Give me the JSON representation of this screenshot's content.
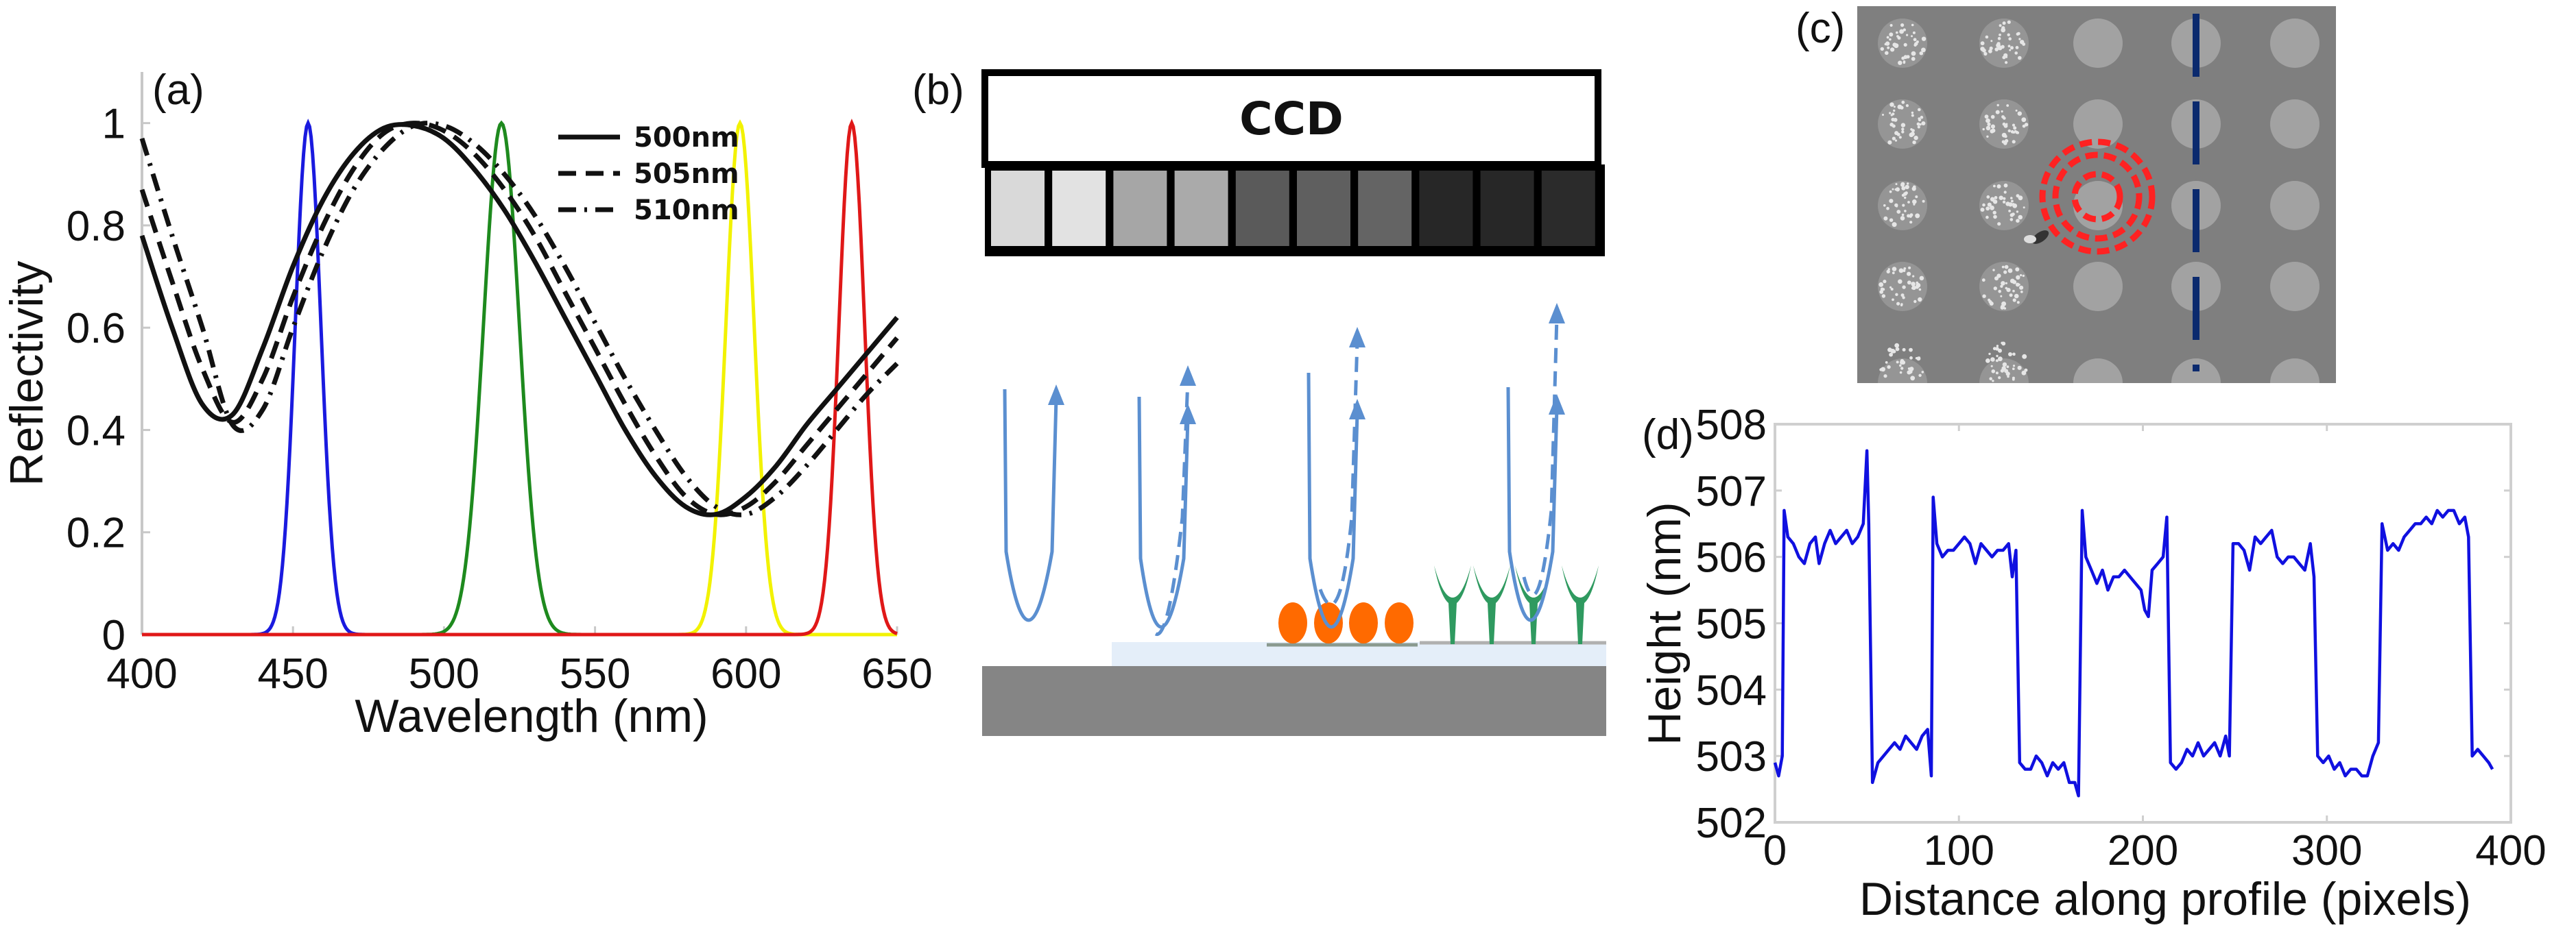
{
  "panels": {
    "a": "(a)",
    "b": "(b)",
    "c": "(c)",
    "d": "(d)"
  },
  "diagram_b": {
    "ccd_label": "CCD",
    "pixel_grays": [
      "#d9d9d9",
      "#e2e2e2",
      "#a6a6a6",
      "#aaaaaa",
      "#5a5a5a",
      "#5f5f5f",
      "#646464",
      "#272727",
      "#272727",
      "#2b2b2b"
    ],
    "colors": {
      "substrate": "#858585",
      "layer": "#e4eef9",
      "beam": "#5b8fd0",
      "particle": "#ff6a00",
      "antibody": "#2f9a60"
    }
  },
  "image_c": {
    "colors": {
      "background": "#7f7f7f",
      "spot": "#a2a2a2",
      "ring": "#ff2222",
      "profile_line": "#0b2a6e"
    },
    "grid": {
      "rows": 5,
      "cols": 5,
      "speckled_cols": 2
    }
  },
  "chart_data": [
    {
      "id": "a",
      "type": "line",
      "xlabel": "Wavelength (nm)",
      "ylabel": "Reflectivity",
      "xlim": [
        400,
        650
      ],
      "ylim": [
        0,
        1.1
      ],
      "xticks": [
        400,
        450,
        500,
        550,
        600,
        650
      ],
      "yticks": [
        0,
        0.2,
        0.4,
        0.6,
        0.8,
        1
      ],
      "ytick_labels": [
        "0",
        "0.2",
        "0.4",
        "0.6",
        "0.8",
        "1"
      ],
      "grid": false,
      "legend_position": "top-right",
      "x": [
        400,
        410,
        420,
        430,
        440,
        450,
        460,
        470,
        480,
        490,
        500,
        510,
        520,
        530,
        540,
        550,
        560,
        570,
        580,
        590,
        600,
        610,
        620,
        630,
        640,
        650
      ],
      "series": [
        {
          "name": "500nm",
          "style": "solid",
          "color": "#111111",
          "values": [
            0.78,
            0.6,
            0.45,
            0.43,
            0.56,
            0.72,
            0.85,
            0.94,
            0.99,
            0.995,
            0.97,
            0.91,
            0.83,
            0.73,
            0.62,
            0.51,
            0.4,
            0.31,
            0.25,
            0.235,
            0.27,
            0.33,
            0.41,
            0.48,
            0.55,
            0.62
          ]
        },
        {
          "name": "505nm",
          "style": "dashed",
          "color": "#111111",
          "values": [
            0.87,
            0.69,
            0.52,
            0.415,
            0.5,
            0.66,
            0.8,
            0.91,
            0.98,
            1.0,
            0.985,
            0.94,
            0.87,
            0.78,
            0.67,
            0.56,
            0.45,
            0.35,
            0.27,
            0.235,
            0.25,
            0.3,
            0.37,
            0.44,
            0.51,
            0.58
          ]
        },
        {
          "name": "510nm",
          "style": "dashdot",
          "color": "#111111",
          "values": [
            0.97,
            0.78,
            0.6,
            0.41,
            0.44,
            0.6,
            0.75,
            0.87,
            0.95,
            0.995,
            0.995,
            0.96,
            0.9,
            0.82,
            0.72,
            0.61,
            0.5,
            0.4,
            0.31,
            0.25,
            0.235,
            0.27,
            0.33,
            0.4,
            0.47,
            0.53
          ]
        }
      ],
      "filters": [
        {
          "color": "#1a1adf",
          "center": 455,
          "peak": 1,
          "fwhm": 10
        },
        {
          "color": "#1e8a1e",
          "center": 519,
          "peak": 1,
          "fwhm": 14
        },
        {
          "color": "#f2f200",
          "center": 598,
          "peak": 1,
          "fwhm": 11
        },
        {
          "color": "#e01818",
          "center": 635,
          "peak": 1,
          "fwhm": 10
        }
      ]
    },
    {
      "id": "d",
      "type": "line",
      "xlabel": "Distance along profile (pixels)",
      "ylabel": "Height (nm)",
      "xlim": [
        0,
        400
      ],
      "ylim": [
        502,
        508
      ],
      "xticks": [
        0,
        100,
        200,
        300,
        400
      ],
      "yticks": [
        502,
        503,
        504,
        505,
        506,
        507,
        508
      ],
      "grid": false,
      "series": [
        {
          "color": "#1010e0",
          "x": [
            0,
            2,
            4,
            5,
            7,
            10,
            13,
            16,
            19,
            22,
            24,
            27,
            30,
            33,
            36,
            39,
            42,
            45,
            48,
            50,
            51,
            53,
            56,
            59,
            62,
            65,
            68,
            71,
            74,
            77,
            80,
            83,
            85,
            86,
            88,
            91,
            94,
            97,
            100,
            103,
            106,
            109,
            112,
            115,
            118,
            121,
            124,
            127,
            129,
            131,
            133,
            136,
            139,
            142,
            145,
            148,
            151,
            154,
            157,
            160,
            163,
            165,
            167,
            169,
            172,
            175,
            178,
            181,
            184,
            187,
            190,
            193,
            196,
            199,
            201,
            203,
            205,
            208,
            211,
            213,
            215,
            218,
            221,
            224,
            227,
            230,
            233,
            236,
            239,
            242,
            245,
            247,
            249,
            252,
            255,
            258,
            261,
            264,
            267,
            270,
            273,
            276,
            279,
            282,
            285,
            288,
            291,
            293,
            295,
            298,
            301,
            304,
            307,
            310,
            313,
            316,
            319,
            322,
            325,
            328,
            330,
            333,
            336,
            339,
            342,
            345,
            348,
            351,
            354,
            357,
            360,
            363,
            366,
            369,
            372,
            375,
            377,
            379,
            382,
            385,
            388,
            390
          ],
          "y": [
            502.9,
            502.7,
            503.0,
            506.7,
            506.3,
            506.2,
            506.0,
            505.9,
            506.2,
            506.3,
            505.9,
            506.2,
            506.4,
            506.2,
            506.3,
            506.4,
            506.2,
            506.3,
            506.5,
            507.6,
            506.5,
            502.6,
            502.9,
            503.0,
            503.1,
            503.2,
            503.1,
            503.3,
            503.2,
            503.1,
            503.3,
            503.4,
            502.7,
            506.9,
            506.2,
            506.0,
            506.1,
            506.1,
            506.2,
            506.3,
            506.2,
            505.9,
            506.2,
            506.1,
            506.0,
            506.1,
            506.1,
            506.2,
            505.7,
            506.1,
            502.9,
            502.8,
            502.8,
            503.0,
            502.9,
            502.7,
            502.9,
            502.8,
            502.9,
            502.6,
            502.6,
            502.4,
            506.7,
            506.0,
            505.8,
            505.6,
            505.8,
            505.5,
            505.7,
            505.7,
            505.8,
            505.7,
            505.6,
            505.5,
            505.2,
            505.1,
            505.8,
            505.9,
            506.0,
            506.6,
            502.9,
            502.8,
            502.9,
            503.1,
            503.0,
            503.2,
            503.0,
            503.1,
            503.2,
            503.0,
            503.3,
            503.0,
            506.2,
            506.2,
            506.1,
            505.8,
            506.3,
            506.2,
            506.3,
            506.4,
            506.0,
            505.9,
            506.0,
            506.0,
            505.9,
            505.8,
            506.2,
            505.7,
            503.0,
            502.9,
            503.0,
            502.8,
            502.9,
            502.7,
            502.8,
            502.8,
            502.7,
            502.7,
            503.0,
            503.2,
            506.5,
            506.1,
            506.2,
            506.1,
            506.3,
            506.4,
            506.5,
            506.5,
            506.6,
            506.5,
            506.7,
            506.6,
            506.7,
            506.7,
            506.5,
            506.6,
            506.3,
            503.0,
            503.1,
            503.0,
            502.9,
            502.8
          ]
        }
      ]
    }
  ]
}
